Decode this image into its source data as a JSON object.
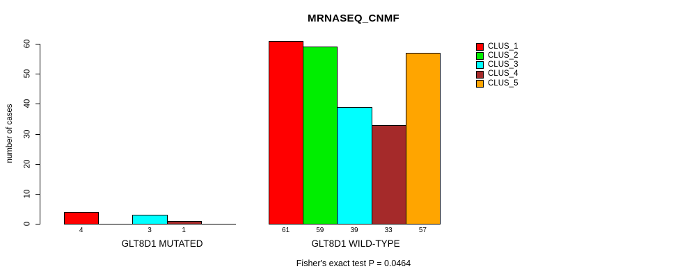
{
  "chart_data": {
    "type": "bar",
    "title": "MRNASEQ_CNMF",
    "xlabel": "",
    "ylabel": "number of cases",
    "ylim": [
      0,
      60
    ],
    "yticks": [
      0,
      10,
      20,
      30,
      40,
      50,
      60
    ],
    "categories": [
      "GLT8D1 MUTATED",
      "GLT8D1 WILD-TYPE"
    ],
    "series": [
      {
        "name": "CLUS_1",
        "color": "#FF0000",
        "values": [
          4,
          61
        ]
      },
      {
        "name": "CLUS_2",
        "color": "#00EE00",
        "values": [
          0,
          59
        ]
      },
      {
        "name": "CLUS_3",
        "color": "#00FFFF",
        "values": [
          3,
          39
        ]
      },
      {
        "name": "CLUS_4",
        "color": "#A52A2A",
        "values": [
          1,
          33
        ]
      },
      {
        "name": "CLUS_5",
        "color": "#FFA500",
        "values": [
          0,
          57
        ]
      }
    ],
    "bar_value_labels": [
      {
        "category": "GLT8D1 MUTATED",
        "labels": [
          "4",
          "",
          "3",
          "1",
          ""
        ]
      },
      {
        "category": "GLT8D1 WILD-TYPE",
        "labels": [
          "61",
          "59",
          "39",
          "33",
          "57"
        ]
      }
    ],
    "annotation": "Fisher's exact test P = 0.0464",
    "legend_position": "right",
    "grid": false,
    "background": "#ffffff"
  }
}
